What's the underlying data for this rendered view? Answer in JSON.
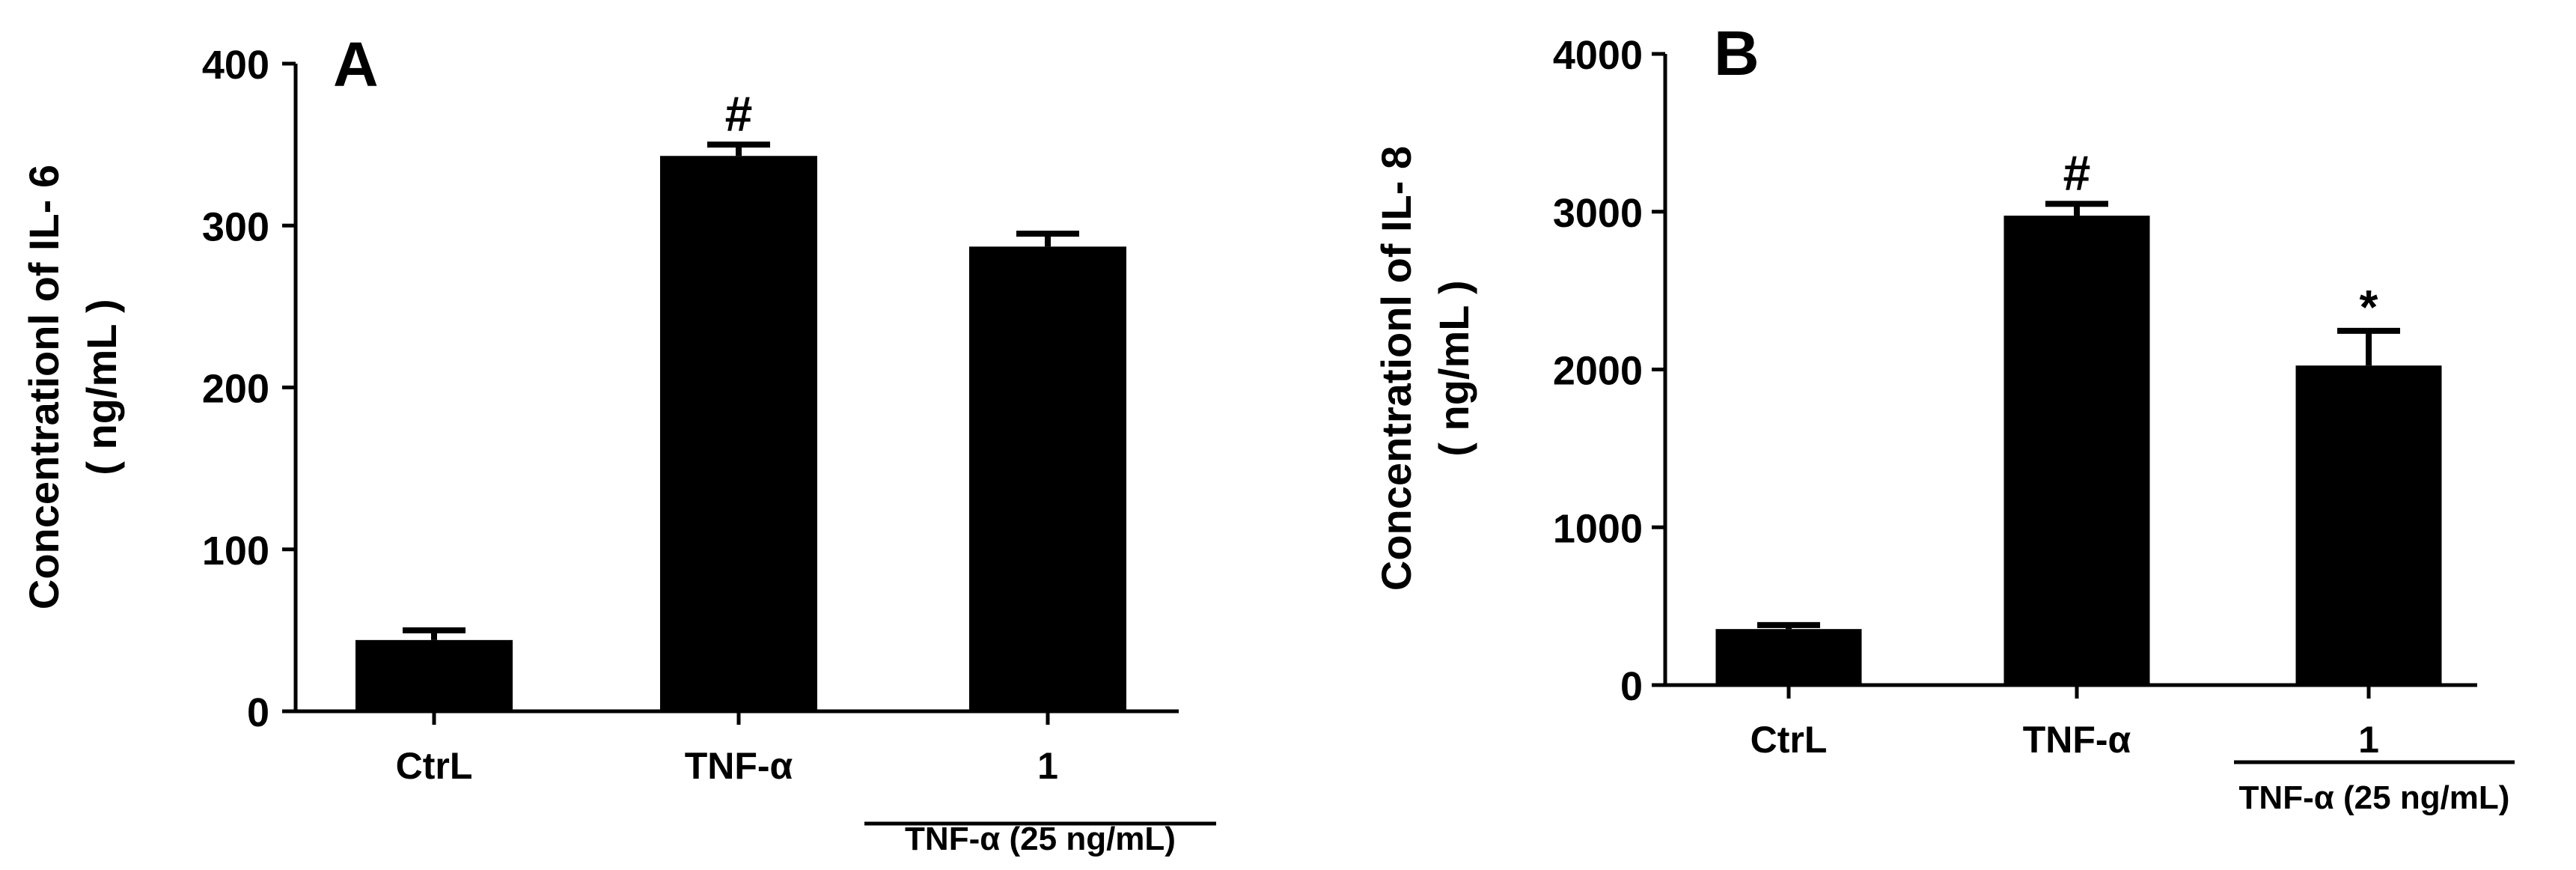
{
  "chart_data": [
    {
      "type": "bar",
      "panel_label": "A",
      "ylabel_line1": "Concentrationl of IL- 6",
      "ylabel_line2": "( ng/mL )",
      "ylim": [
        0,
        400
      ],
      "yticks": [
        0,
        100,
        200,
        300,
        400
      ],
      "categories": [
        "CtrL",
        "TNF-α",
        "1"
      ],
      "values": [
        44,
        343,
        287
      ],
      "errors": [
        6,
        7,
        8
      ],
      "annotations": [
        "",
        "#",
        ""
      ],
      "group_label": "TNF-α  (25 ng/mL)"
    },
    {
      "type": "bar",
      "panel_label": "B",
      "ylabel_line1": "Concentrationl of IL- 8",
      "ylabel_line2": "( ng/mL )",
      "ylim": [
        0,
        4000
      ],
      "yticks": [
        0,
        1000,
        2000,
        3000,
        4000
      ],
      "categories": [
        "CtrL",
        "TNF-α",
        "1"
      ],
      "values": [
        355,
        2975,
        2025
      ],
      "errors": [
        25,
        75,
        220
      ],
      "annotations": [
        "",
        "#",
        "*"
      ],
      "group_label": "TNF-α  (25 ng/mL)"
    }
  ],
  "colors": {
    "bar": "#000000",
    "axis": "#000000",
    "background": "#ffffff"
  }
}
